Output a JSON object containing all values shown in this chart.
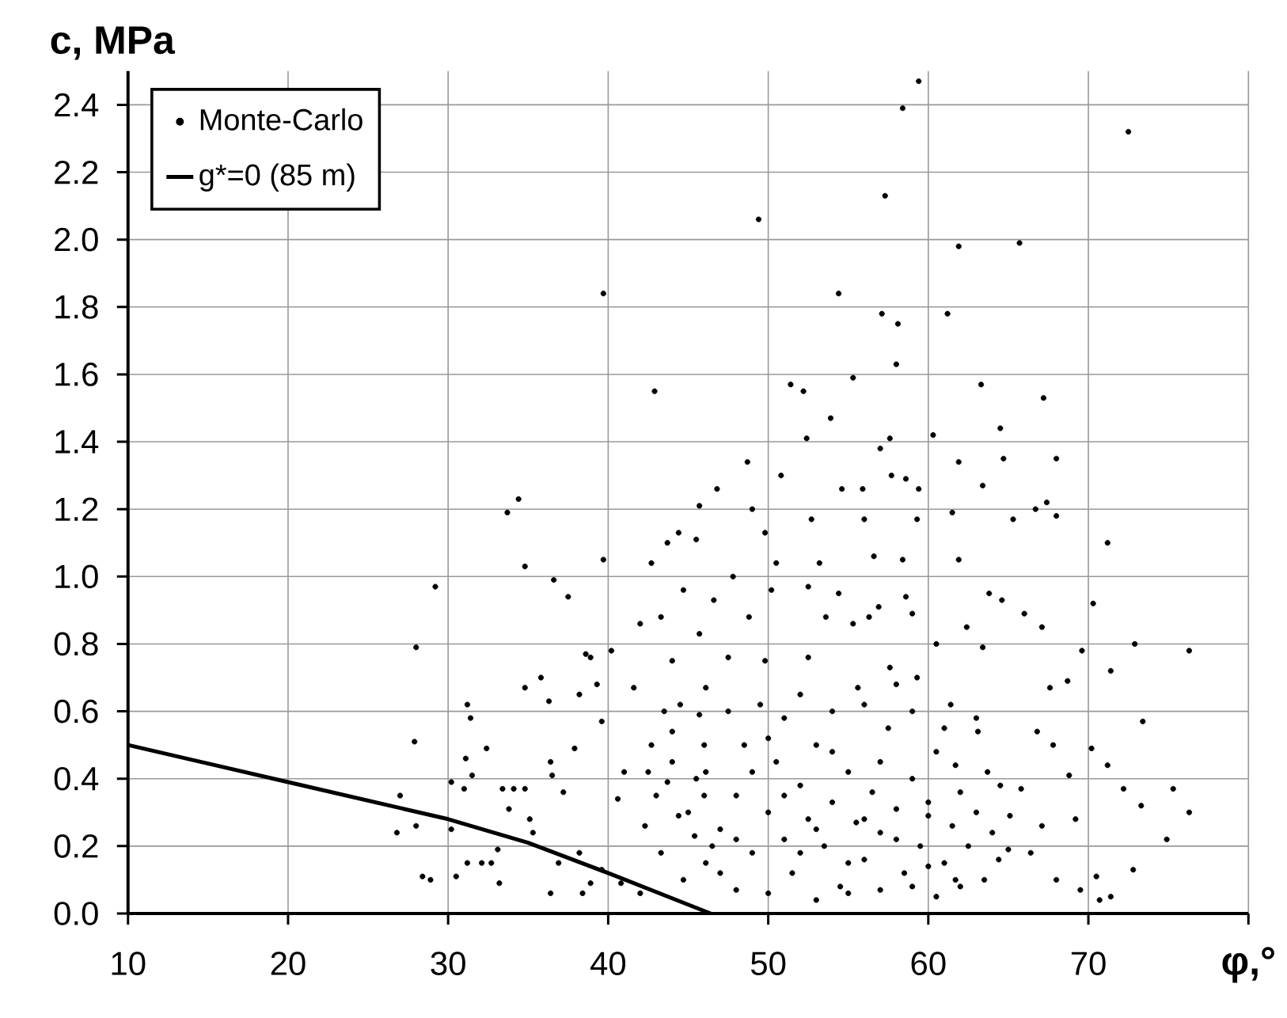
{
  "chart_data": {
    "type": "scatter",
    "xlabel": "φ,°",
    "ylabel": "c, MPa",
    "xlim": [
      10,
      80
    ],
    "ylim": [
      0,
      2.5
    ],
    "xticks": [
      10,
      20,
      30,
      40,
      50,
      60,
      70,
      {
        "value": 80,
        "label": null
      }
    ],
    "yticks": [
      {
        "value": 0,
        "label": "0.0"
      },
      {
        "value": 0.2,
        "label": "0.2"
      },
      {
        "value": 0.4,
        "label": "0.4"
      },
      {
        "value": 0.6,
        "label": "0.6"
      },
      {
        "value": 0.8,
        "label": "0.8"
      },
      {
        "value": 1.0,
        "label": "1.0"
      },
      {
        "value": 1.2,
        "label": "1.2"
      },
      {
        "value": 1.4,
        "label": "1.4"
      },
      {
        "value": 1.6,
        "label": "1.6"
      },
      {
        "value": 1.8,
        "label": "1.8"
      },
      {
        "value": 2.0,
        "label": "2.0"
      },
      {
        "value": 2.2,
        "label": "2.2"
      },
      {
        "value": 2.4,
        "label": "2.4"
      }
    ],
    "grid": true,
    "legend": "top left",
    "marker": "circle",
    "series": [
      {
        "name": "Monte-Carlo",
        "color": "#000000",
        "x": [
          39.7,
          42.9,
          34.4,
          33.7,
          45.7,
          34.8,
          29.2,
          39.7,
          36.6,
          37.5,
          28.0,
          27.9,
          31.2,
          31.4,
          32.4,
          27.0,
          26.8,
          28.0,
          28.4,
          28.9,
          30.5,
          30.2,
          31.1,
          31.5,
          31.0,
          30.2,
          31.2,
          32.1,
          32.7,
          33.2,
          33.1,
          33.4,
          34.1,
          34.8,
          33.8,
          35.1,
          35.3,
          34.8,
          35.8,
          36.3,
          38.6,
          38.9,
          40.2,
          38.2,
          39.3,
          39.6,
          36.4,
          36.5,
          37.2,
          37.9,
          36.4,
          38.4,
          38.9,
          40.8,
          42.0,
          36.9,
          38.2,
          39.6,
          40.6,
          41.0,
          42.0,
          42.7,
          43.7,
          44.4,
          45.5,
          43.3,
          44.7,
          44.0,
          41.6,
          42.7,
          44.0,
          45.7,
          42.3,
          43.3,
          44.4,
          45.4,
          46.1,
          44.7,
          43.7,
          46.1,
          45.7,
          59.4,
          58.4,
          72.5,
          57.3,
          49.4,
          61.9,
          65.7,
          54.4,
          57.1,
          58.1,
          61.2,
          58.0,
          55.3,
          51.4,
          52.2,
          63.3,
          67.2,
          53.9,
          60.3,
          64.5,
          52.4,
          48.7,
          46.8,
          50.8,
          57.0,
          57.6,
          61.9,
          64.7,
          68.0,
          57.7,
          58.6,
          59.4,
          54.6,
          55.9,
          63.4,
          71.2,
          66.7,
          67.4,
          68.0,
          65.3,
          61.5,
          61.9,
          59.3,
          56.0,
          52.7,
          49.8,
          49.0,
          47.8,
          50.5,
          53.2,
          56.6,
          58.4,
          70.3,
          72.9,
          76.3,
          69.6,
          71.4,
          73.4,
          71.2,
          72.2,
          75.3,
          76.3,
          73.3,
          74.9,
          72.8,
          71.4,
          70.7,
          70.5,
          69.5,
          68.8,
          69.2,
          70.2,
          68.7,
          67.6,
          66.0,
          64.6,
          63.8,
          63.4,
          67.1,
          66.8,
          67.8,
          65.8,
          67.1,
          68.0,
          66.4,
          65.1,
          63.7,
          63.1,
          61.7,
          61.4,
          62.4,
          60.5,
          60.0,
          60.5,
          61.7,
          64.4,
          59.0,
          58.6,
          56.9,
          56.3,
          55.3,
          53.6,
          54.4,
          52.5,
          50.2,
          46.6,
          48.8,
          59.3,
          57.6,
          55.6,
          52.5,
          49.8,
          47.5,
          46.1,
          47,
          48,
          49,
          50,
          50.5,
          51,
          51.5,
          52,
          52.5,
          53,
          53.5,
          54,
          54.5,
          55,
          55.5,
          56,
          56.5,
          57,
          57.5,
          58,
          58.5,
          59,
          59.5,
          60,
          60.5,
          61,
          61.5,
          62,
          62.5,
          63,
          63.5,
          64,
          64.5,
          65,
          47.5,
          48.5,
          49.5,
          50,
          51,
          52,
          53,
          54,
          55,
          56,
          57,
          58,
          59,
          45,
          45.5,
          46,
          44,
          43,
          42.5,
          46.5,
          47,
          48,
          44.5,
          43.5,
          49,
          51,
          53,
          55,
          57,
          59,
          61,
          63,
          62,
          50,
          52,
          54,
          56,
          58,
          60,
          48,
          46
        ],
        "values": [
          1.84,
          1.55,
          1.23,
          1.19,
          1.21,
          1.03,
          0.97,
          1.05,
          0.99,
          0.94,
          0.79,
          0.51,
          0.62,
          0.58,
          0.49,
          0.35,
          0.24,
          0.26,
          0.11,
          0.1,
          0.11,
          0.39,
          0.46,
          0.41,
          0.37,
          0.25,
          0.15,
          0.15,
          0.15,
          0.09,
          0.19,
          0.37,
          0.37,
          0.37,
          0.31,
          0.28,
          0.24,
          0.67,
          0.7,
          0.63,
          0.77,
          0.76,
          0.78,
          0.65,
          0.68,
          0.57,
          0.45,
          0.41,
          0.36,
          0.49,
          0.06,
          0.06,
          0.09,
          0.09,
          0.06,
          0.15,
          0.18,
          0.13,
          0.34,
          0.42,
          0.86,
          1.04,
          1.1,
          1.13,
          1.11,
          0.88,
          0.96,
          0.75,
          0.67,
          0.5,
          0.54,
          0.59,
          0.26,
          0.18,
          0.29,
          0.23,
          0.15,
          0.1,
          0.39,
          0.42,
          0.83,
          2.47,
          2.39,
          2.32,
          2.13,
          2.06,
          1.98,
          1.99,
          1.84,
          1.78,
          1.75,
          1.78,
          1.63,
          1.59,
          1.57,
          1.55,
          1.57,
          1.53,
          1.47,
          1.42,
          1.44,
          1.41,
          1.34,
          1.26,
          1.3,
          1.38,
          1.41,
          1.34,
          1.35,
          1.35,
          1.3,
          1.29,
          1.26,
          1.26,
          1.26,
          1.27,
          1.1,
          1.2,
          1.22,
          1.18,
          1.17,
          1.19,
          1.05,
          1.17,
          1.17,
          1.17,
          1.13,
          1.2,
          1.0,
          1.04,
          1.04,
          1.06,
          1.05,
          0.92,
          0.8,
          0.78,
          0.78,
          0.72,
          0.57,
          0.44,
          0.37,
          0.37,
          0.3,
          0.32,
          0.22,
          0.13,
          0.05,
          0.04,
          0.11,
          0.07,
          0.41,
          0.28,
          0.49,
          0.69,
          0.67,
          0.89,
          0.93,
          0.95,
          0.79,
          0.85,
          0.54,
          0.5,
          0.37,
          0.26,
          0.1,
          0.18,
          0.29,
          0.42,
          0.54,
          0.44,
          0.62,
          0.85,
          0.8,
          0.29,
          0.05,
          0.1,
          0.16,
          0.89,
          0.94,
          0.91,
          0.88,
          0.86,
          0.88,
          0.95,
          0.97,
          0.96,
          0.93,
          0.88,
          0.7,
          0.73,
          0.67,
          0.76,
          0.75,
          0.76,
          0.67,
          0.25,
          0.35,
          0.18,
          0.3,
          0.45,
          0.22,
          0.12,
          0.38,
          0.28,
          0.5,
          0.2,
          0.33,
          0.08,
          0.42,
          0.27,
          0.16,
          0.36,
          0.24,
          0.55,
          0.31,
          0.12,
          0.4,
          0.2,
          0.33,
          0.48,
          0.15,
          0.26,
          0.36,
          0.2,
          0.3,
          0.1,
          0.24,
          0.38,
          0.19,
          0.6,
          0.5,
          0.62,
          0.06,
          0.58,
          0.65,
          0.04,
          0.6,
          0.06,
          0.62,
          0.07,
          0.68,
          0.6,
          0.3,
          0.4,
          0.5,
          0.45,
          0.35,
          0.42,
          0.2,
          0.12,
          0.07,
          0.62,
          0.6,
          0.42,
          0.35,
          0.25,
          0.15,
          0.45,
          0.08,
          0.55,
          0.58,
          0.08,
          0.52,
          0.18,
          0.48,
          0.28,
          0.22,
          0.14,
          0.22,
          0.35
        ]
      },
      {
        "name": "g*=0 (85 m)",
        "type": "line",
        "color": "#000000",
        "marker": "none",
        "line_style": "solid",
        "x": [
          10,
          20,
          30,
          35,
          40,
          46.4
        ],
        "values": [
          0.5,
          0.39,
          0.28,
          0.21,
          0.12,
          0
        ]
      }
    ]
  }
}
